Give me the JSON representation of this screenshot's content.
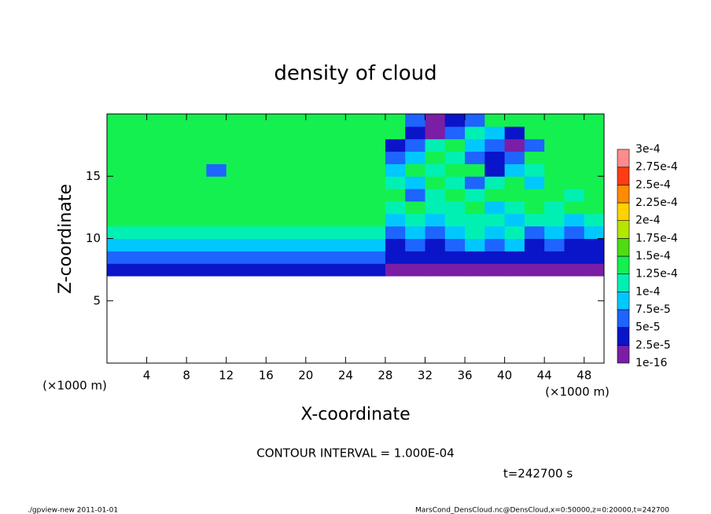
{
  "chart_data": {
    "type": "heatmap",
    "title": "density of cloud",
    "x_label": "X-coordinate",
    "y_label": "Z-coordinate",
    "axis_unit_label": "(×1000 m)",
    "annotations": [
      "CONTOUR INTERVAL = 1.000E-04",
      "t=242700 s"
    ],
    "footer_left": "./gpview-new  2011-01-01",
    "footer_right": "MarsCond_DensCloud.nc@DensCloud,x=0:50000,z=0:20000,t=242700",
    "xlim": [
      0,
      50
    ],
    "ylim": [
      0,
      20
    ],
    "xticks": [
      4,
      8,
      12,
      16,
      20,
      24,
      28,
      32,
      36,
      40,
      44,
      48
    ],
    "yticks": [
      5,
      10,
      15
    ],
    "x": [
      1,
      3,
      5,
      7,
      9,
      11,
      13,
      15,
      17,
      19,
      21,
      23,
      25,
      27,
      29,
      31,
      33,
      35,
      37,
      39,
      41,
      43,
      45,
      47,
      49
    ],
    "y": [
      7.5,
      8.5,
      9.5,
      10.5,
      11.5,
      12.5,
      13.5,
      14.5,
      15.5,
      16.5,
      17.5,
      18.5,
      19.5
    ],
    "z": [
      [
        3.75e-05,
        3.75e-05,
        3.75e-05,
        3.75e-05,
        3.75e-05,
        3.75e-05,
        3.75e-05,
        3.75e-05,
        3.75e-05,
        3.75e-05,
        3.75e-05,
        3.75e-05,
        3.75e-05,
        3.75e-05,
        1e-05,
        1e-05,
        1e-05,
        1e-05,
        1e-05,
        1e-05,
        1e-05,
        1e-05,
        1e-05,
        1e-05,
        1e-05
      ],
      [
        6.25e-05,
        6.25e-05,
        6.25e-05,
        6.25e-05,
        6.25e-05,
        6.25e-05,
        6.25e-05,
        6.25e-05,
        6.25e-05,
        6.25e-05,
        6.25e-05,
        6.25e-05,
        6.25e-05,
        6.25e-05,
        3.75e-05,
        3.75e-05,
        3.75e-05,
        3.75e-05,
        3.75e-05,
        3.75e-05,
        3.75e-05,
        3.75e-05,
        3.75e-05,
        3.75e-05,
        3.75e-05
      ],
      [
        8.75e-05,
        8.75e-05,
        8.75e-05,
        8.75e-05,
        8.75e-05,
        8.75e-05,
        8.75e-05,
        8.75e-05,
        8.75e-05,
        8.75e-05,
        8.75e-05,
        8.75e-05,
        8.75e-05,
        8.75e-05,
        3.75e-05,
        6.25e-05,
        3.75e-05,
        6.25e-05,
        8.75e-05,
        6.25e-05,
        8.75e-05,
        3.75e-05,
        6.25e-05,
        3.75e-05,
        3.75e-05
      ],
      [
        0.000112,
        0.000112,
        0.000112,
        0.000112,
        0.000112,
        0.000112,
        0.000112,
        0.000112,
        0.000112,
        0.000112,
        0.000112,
        0.000112,
        0.000112,
        0.000112,
        6.25e-05,
        8.75e-05,
        6.25e-05,
        8.75e-05,
        0.000112,
        8.75e-05,
        0.000112,
        6.25e-05,
        8.75e-05,
        6.25e-05,
        8.75e-05
      ],
      [
        0.000137,
        0.000137,
        0.000137,
        0.000137,
        0.000137,
        0.000137,
        0.000137,
        0.000137,
        0.000137,
        0.000137,
        0.000137,
        0.000137,
        0.000137,
        0.000137,
        8.75e-05,
        0.000112,
        8.75e-05,
        0.000112,
        0.000112,
        0.000112,
        8.75e-05,
        0.000112,
        0.000112,
        8.75e-05,
        0.000112
      ],
      [
        0.000137,
        0.000137,
        0.000137,
        0.000137,
        0.000137,
        0.000137,
        0.000137,
        0.000137,
        0.000137,
        0.000137,
        0.000137,
        0.000137,
        0.000137,
        0.000137,
        0.000112,
        0.000137,
        0.000112,
        0.000112,
        0.000137,
        8.75e-05,
        0.000112,
        0.000137,
        0.000112,
        0.000137,
        0.000137
      ],
      [
        0.000137,
        0.000137,
        0.000137,
        0.000137,
        0.000137,
        0.000137,
        0.000137,
        0.000137,
        0.000137,
        0.000137,
        0.000137,
        0.000137,
        0.000137,
        0.000137,
        0.000137,
        6.25e-05,
        0.000112,
        0.000137,
        0.000112,
        0.000137,
        0.000137,
        0.000137,
        0.000137,
        0.000112,
        0.000137
      ],
      [
        0.000137,
        0.000137,
        0.000137,
        0.000137,
        0.000137,
        0.000137,
        0.000137,
        0.000137,
        0.000137,
        0.000137,
        0.000137,
        0.000137,
        0.000137,
        0.000137,
        0.000112,
        8.75e-05,
        0.000137,
        0.000112,
        6.25e-05,
        0.000112,
        0.000137,
        8.75e-05,
        0.000137,
        0.000137,
        0.000137
      ],
      [
        0.000137,
        0.000137,
        0.000137,
        0.000137,
        0.000137,
        6.25e-05,
        0.000137,
        0.000137,
        0.000137,
        0.000137,
        0.000137,
        0.000137,
        0.000137,
        0.000137,
        8.75e-05,
        0.000137,
        0.000112,
        0.000137,
        0.000137,
        3.75e-05,
        8.75e-05,
        0.000112,
        0.000137,
        0.000137,
        0.000137
      ],
      [
        0.000137,
        0.000137,
        0.000137,
        0.000137,
        0.000137,
        0.000137,
        0.000137,
        0.000137,
        0.000137,
        0.000137,
        0.000137,
        0.000137,
        0.000137,
        0.000137,
        6.25e-05,
        8.75e-05,
        0.000137,
        0.000112,
        6.25e-05,
        3.75e-05,
        6.25e-05,
        0.000137,
        0.000137,
        0.000137,
        0.000137
      ],
      [
        0.000137,
        0.000137,
        0.000137,
        0.000137,
        0.000137,
        0.000137,
        0.000137,
        0.000137,
        0.000137,
        0.000137,
        0.000137,
        0.000137,
        0.000137,
        0.000137,
        3.75e-05,
        6.25e-05,
        0.000112,
        0.000137,
        8.75e-05,
        6.25e-05,
        1e-05,
        6.25e-05,
        0.000137,
        0.000137,
        0.000137
      ],
      [
        0.000137,
        0.000137,
        0.000137,
        0.000137,
        0.000137,
        0.000137,
        0.000137,
        0.000137,
        0.000137,
        0.000137,
        0.000137,
        0.000137,
        0.000137,
        0.000137,
        0.000137,
        3.75e-05,
        1e-05,
        6.25e-05,
        0.000112,
        8.75e-05,
        3.75e-05,
        0.000137,
        0.000137,
        0.000137,
        0.000137
      ],
      [
        0.000137,
        0.000137,
        0.000137,
        0.000137,
        0.000137,
        0.000137,
        0.000137,
        0.000137,
        0.000137,
        0.000137,
        0.000137,
        0.000137,
        0.000137,
        0.000137,
        0.000137,
        6.25e-05,
        1e-05,
        3.75e-05,
        6.25e-05,
        0.000137,
        0.000137,
        0.000137,
        0.000137,
        0.000137,
        0.000137
      ]
    ],
    "colorbar": {
      "levels": [
        {
          "value": 1e-16,
          "label": "1e-16"
        },
        {
          "value": 2.5e-05,
          "label": "2.5e-5"
        },
        {
          "value": 5e-05,
          "label": "5e-5"
        },
        {
          "value": 7.5e-05,
          "label": "7.5e-5"
        },
        {
          "value": 0.0001,
          "label": "1e-4"
        },
        {
          "value": 0.000125,
          "label": "1.25e-4"
        },
        {
          "value": 0.00015,
          "label": "1.5e-4"
        },
        {
          "value": 0.000175,
          "label": "1.75e-4"
        },
        {
          "value": 0.0002,
          "label": "2e-4"
        },
        {
          "value": 0.000225,
          "label": "2.25e-4"
        },
        {
          "value": 0.00025,
          "label": "2.5e-4"
        },
        {
          "value": 0.000275,
          "label": "2.75e-4"
        },
        {
          "value": 0.0003,
          "label": "3e-4"
        }
      ],
      "colors": [
        "#7a1ea6",
        "#0a14c8",
        "#1e64ff",
        "#00c8ff",
        "#00f0b4",
        "#14f050",
        "#50dc14",
        "#b4e600",
        "#ffd200",
        "#ff8c00",
        "#ff3c14",
        "#ff8c8c"
      ]
    }
  }
}
